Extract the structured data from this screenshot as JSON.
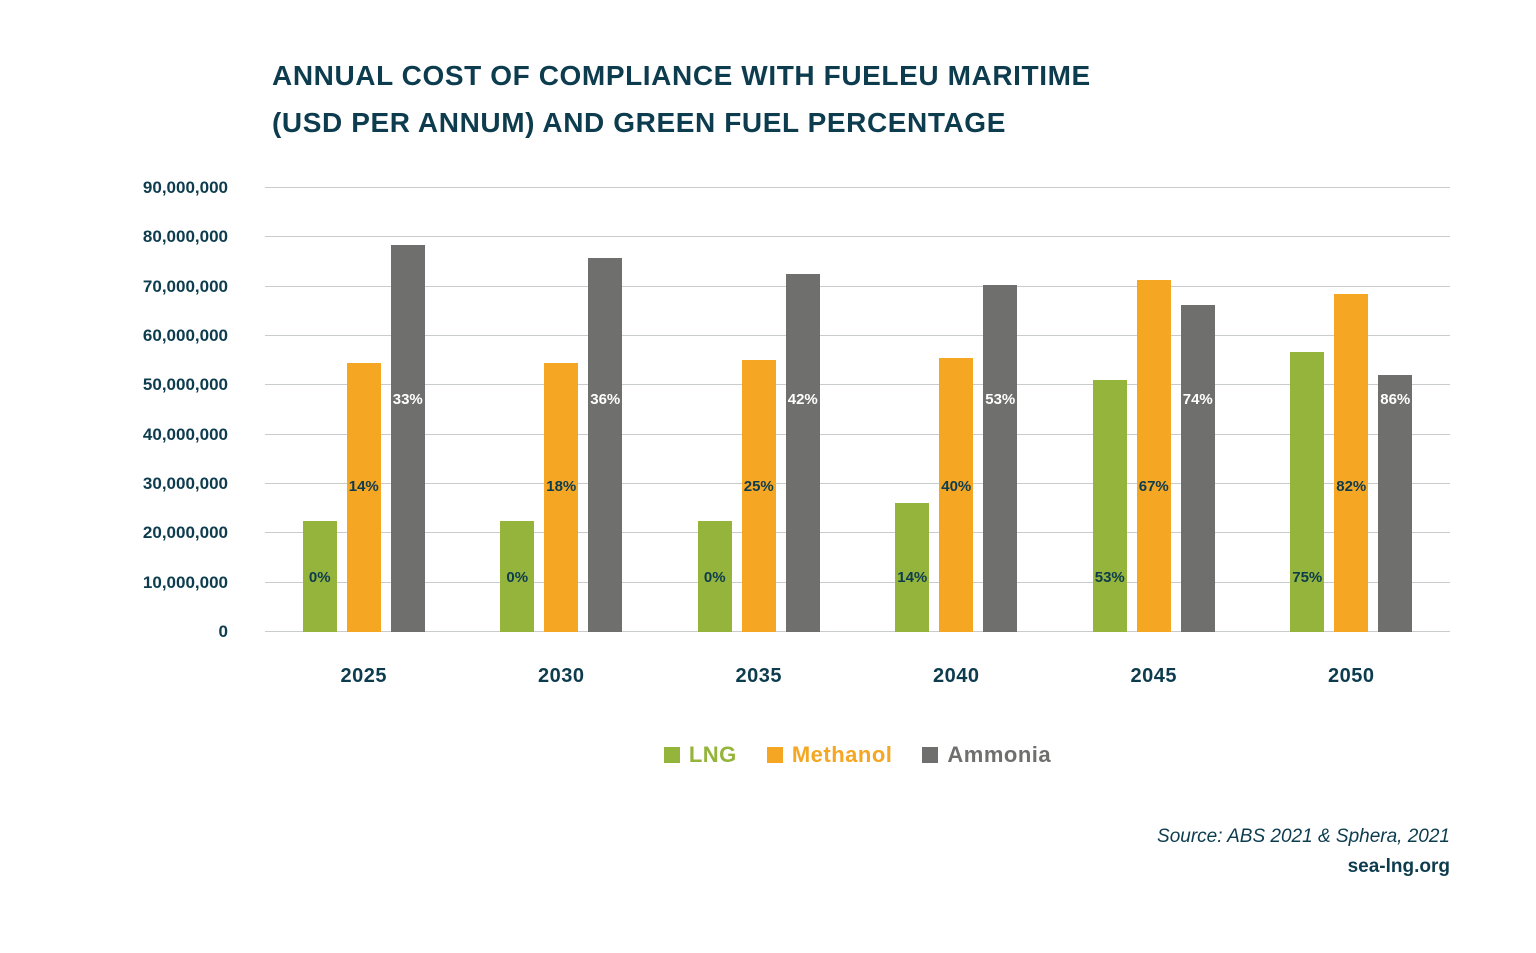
{
  "title": {
    "line1": "ANNUAL COST OF COMPLIANCE WITH FUELEU MARITIME",
    "line2": "(USD PER ANNUM) AND GREEN FUEL PERCENTAGE"
  },
  "source": {
    "line1": "Source: ABS 2021 & Sphera, 2021",
    "line2": "sea-lng.org"
  },
  "colors": {
    "title_text": "#0d3c4e",
    "grid": "#c9cccd",
    "lng_green": "#94b43b",
    "methanol_orange": "#f5a623",
    "ammonia_gray": "#6f6f6e"
  },
  "chart_data": {
    "type": "bar",
    "title": "ANNUAL COST OF COMPLIANCE WITH FUELEU MARITIME (USD PER ANNUM) AND GREEN FUEL PERCENTAGE",
    "xlabel": "",
    "ylabel": "",
    "ylim": [
      0,
      90000000
    ],
    "grid": true,
    "legend_position": "bottom",
    "categories": [
      "2025",
      "2030",
      "2035",
      "2040",
      "2045",
      "2050"
    ],
    "ytick_labels": [
      "0",
      "10,000,000",
      "20,000,000",
      "30,000,000",
      "40,000,000",
      "50,000,000",
      "60,000,000",
      "70,000,000",
      "80,000,000",
      "90,000,000"
    ],
    "series": [
      {
        "name": "LNG",
        "color": "#94b43b",
        "values": [
          22500000,
          22500000,
          22500000,
          26200000,
          51000000,
          56800000
        ],
        "pct_labels": [
          "0%",
          "0%",
          "0%",
          "14%",
          "53%",
          "75%"
        ],
        "pct_label_color": "#0d3c4e"
      },
      {
        "name": "Methanol",
        "color": "#f5a623",
        "values": [
          54500000,
          54500000,
          55200000,
          55500000,
          71300000,
          68600000
        ],
        "pct_labels": [
          "14%",
          "18%",
          "25%",
          "40%",
          "67%",
          "82%"
        ],
        "pct_label_color": "#0d3c4e"
      },
      {
        "name": "Ammonia",
        "color": "#6f6f6e",
        "values": [
          78500000,
          75800000,
          72500000,
          70300000,
          66300000,
          52100000
        ],
        "pct_labels": [
          "33%",
          "36%",
          "42%",
          "53%",
          "74%",
          "86%"
        ],
        "pct_label_color": "#ffffff"
      }
    ]
  }
}
